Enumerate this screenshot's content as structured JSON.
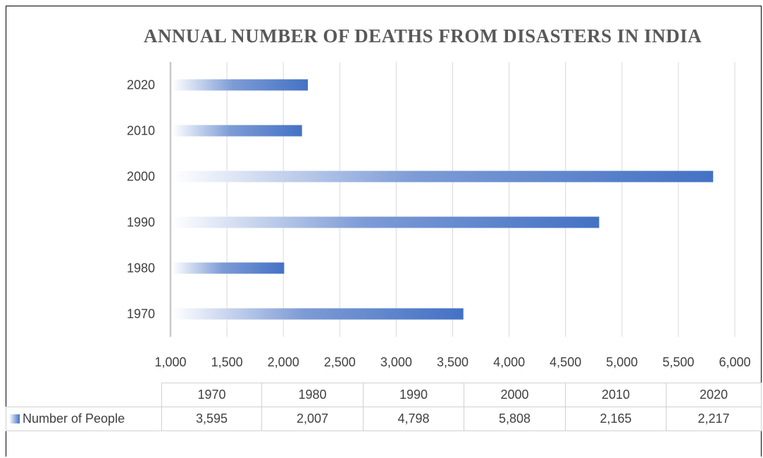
{
  "chart_data": {
    "type": "bar",
    "orientation": "horizontal",
    "title": "ANNUAL NUMBER OF DEATHS FROM DISASTERS IN INDIA",
    "categories": [
      "1970",
      "1980",
      "1990",
      "2000",
      "2010",
      "2020"
    ],
    "series": [
      {
        "name": "Number of People",
        "values": [
          3595,
          2007,
          4798,
          5808,
          2165,
          2217
        ]
      }
    ],
    "xlim": [
      1000,
      6000
    ],
    "x_ticks": [
      "1,000",
      "1,500",
      "2,000",
      "2,500",
      "3,000",
      "3,500",
      "4,000",
      "4,500",
      "5,000",
      "5,500",
      "6,000"
    ],
    "grid": "vertical",
    "bar_color": "#4472c4",
    "data_table": {
      "header": [
        "1970",
        "1980",
        "1990",
        "2000",
        "2010",
        "2020"
      ],
      "row_label": "Number of People",
      "row_values": [
        "3,595",
        "2,007",
        "4,798",
        "5,808",
        "2,165",
        "2,217"
      ]
    }
  }
}
